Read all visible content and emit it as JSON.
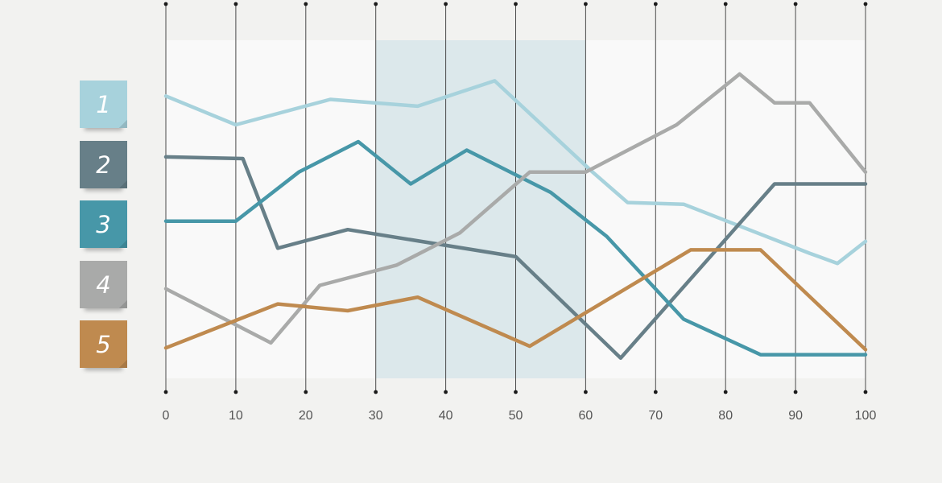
{
  "chart_data": {
    "type": "line",
    "xlim": [
      0,
      100
    ],
    "x_ticks": [
      0,
      10,
      20,
      30,
      40,
      50,
      60,
      70,
      80,
      90,
      100
    ],
    "tick_labels": [
      "0",
      "10",
      "20",
      "30",
      "40",
      "50",
      "60",
      "70",
      "80",
      "90",
      "100"
    ],
    "ylim": [
      0,
      100
    ],
    "grid": "vertical",
    "highlight_range": [
      30,
      60
    ],
    "legend_position": "left",
    "legend": [
      "1",
      "2",
      "3",
      "4",
      "5"
    ],
    "series": [
      {
        "name": "1",
        "color": "#a7d2dc",
        "x": [
          0,
          10,
          23.5,
          36,
          47,
          61,
          66,
          74,
          92,
          96,
          100
        ],
        "y": [
          83.5,
          75,
          82.5,
          80.5,
          88,
          61,
          52,
          51.5,
          37,
          34,
          40.5
        ]
      },
      {
        "name": "2",
        "color": "#677f88",
        "x": [
          0,
          11,
          16,
          26,
          50,
          65,
          87,
          100
        ],
        "y": [
          65.5,
          65,
          38.5,
          44,
          36,
          6,
          57.5,
          57.5
        ]
      },
      {
        "name": "3",
        "color": "#4797a8",
        "x": [
          0,
          10,
          19,
          27.5,
          35,
          43,
          55,
          63,
          74,
          85,
          100
        ],
        "y": [
          46.5,
          46.5,
          61,
          70,
          57.5,
          67.5,
          55,
          42,
          17.5,
          7,
          7
        ]
      },
      {
        "name": "4",
        "color": "#a9aaa9",
        "x": [
          0,
          15,
          22,
          33,
          42,
          52,
          60,
          73,
          82,
          87,
          92,
          100
        ],
        "y": [
          26.5,
          10.5,
          27.5,
          33.5,
          43,
          61,
          61,
          75,
          90,
          81.5,
          81.5,
          61
        ]
      },
      {
        "name": "5",
        "color": "#bf8a4f",
        "x": [
          0,
          16,
          26,
          36,
          52,
          75,
          85,
          100
        ],
        "y": [
          9,
          22,
          20,
          24,
          9.5,
          38,
          38,
          8.5
        ]
      }
    ]
  }
}
